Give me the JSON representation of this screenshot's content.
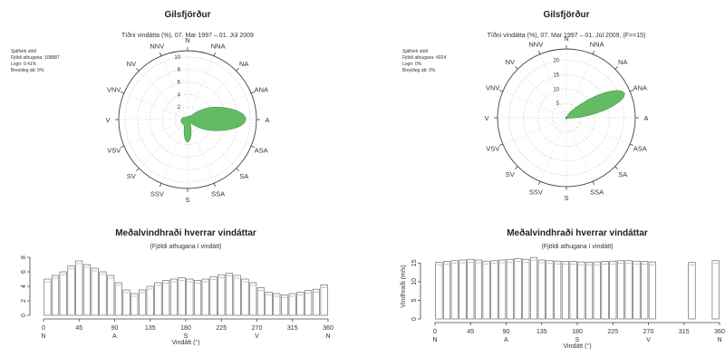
{
  "directions": [
    "N",
    "NNA",
    "NA",
    "ANA",
    "A",
    "ASA",
    "SA",
    "SSA",
    "S",
    "SSV",
    "SV",
    "VSV",
    "V",
    "VNV",
    "NV",
    "NNV"
  ],
  "chart_data": [
    {
      "type": "polar-area",
      "title": "Gilsfjörður",
      "subtitle": "Tíðni vindátta (%), 07. Mar 1997 – 01. Júl 2009",
      "info": [
        "Sjálfvirk stöð",
        "Fjöldi athugana: 108887",
        "Logn: 0.41%",
        "Breytileg átt: 0%"
      ],
      "rings": [
        2,
        4,
        6,
        8,
        10
      ],
      "rmax": 11,
      "fill_color": "#5cb85c",
      "direction_deg": [
        0,
        22.5,
        45,
        67.5,
        90,
        112.5,
        135,
        157.5,
        180,
        202.5,
        225,
        247.5,
        270,
        292.5,
        315,
        337.5
      ],
      "values": [
        0.5,
        0.6,
        1.2,
        5.2,
        9.3,
        4.6,
        0.9,
        1.4,
        3.6,
        1.4,
        1.0,
        1.1,
        1.0,
        0.8,
        0.5,
        0.4
      ]
    },
    {
      "type": "polar-area",
      "title": "Gilsfjörður",
      "subtitle": "Tíðni vindátta (%), 07. Mar 1997 – 01. Júl 2009, (F>=15)",
      "info": [
        "Sjálfvirk stöð",
        "Fjöldi athugana: 4024",
        "Logn: 0%",
        "Breytileg átt: 0%"
      ],
      "rings": [
        5,
        10,
        15,
        20
      ],
      "rmax": 24,
      "fill_color": "#5cb85c",
      "direction_deg": [
        0,
        22.5,
        45,
        67.5,
        90,
        112.5,
        135,
        157.5,
        180,
        202.5,
        225,
        247.5,
        270,
        292.5,
        315,
        337.5
      ],
      "values": [
        0.3,
        0.5,
        6,
        22,
        3,
        0.6,
        0.4,
        0.4,
        0.4,
        0.4,
        0.4,
        0.3,
        0.3,
        0.3,
        0.3,
        0.3
      ]
    },
    {
      "type": "bar",
      "title": "Meðalvindhraði hverrar vindáttar",
      "subtitle": "(Fjöldi athugana í vindátt)",
      "xlabel": "Vindátt (°)",
      "ylabel": "",
      "xlim": [
        0,
        360
      ],
      "ylim": [
        0,
        8.5
      ],
      "x_ticks": [
        0,
        45,
        90,
        135,
        180,
        225,
        270,
        315,
        360
      ],
      "x_tick_dirs": [
        "N",
        "",
        "A",
        "",
        "S",
        "",
        "V",
        "",
        "N"
      ],
      "y_ticks": [
        0,
        2,
        4,
        6,
        8
      ],
      "x": [
        5,
        15,
        25,
        35,
        45,
        55,
        65,
        75,
        85,
        95,
        105,
        115,
        125,
        135,
        145,
        155,
        165,
        175,
        185,
        195,
        205,
        215,
        225,
        235,
        245,
        255,
        265,
        275,
        285,
        295,
        305,
        315,
        325,
        335,
        345,
        355
      ],
      "values": [
        5.0,
        5.5,
        6.0,
        6.8,
        7.5,
        7.0,
        6.5,
        6.0,
        5.5,
        4.5,
        3.5,
        3.0,
        3.5,
        4.0,
        4.5,
        4.8,
        5.0,
        5.2,
        5.0,
        4.8,
        5.0,
        5.3,
        5.6,
        5.8,
        5.5,
        5.0,
        4.5,
        3.8,
        3.2,
        3.0,
        2.8,
        3.0,
        3.2,
        3.4,
        3.6,
        4.2
      ]
    },
    {
      "type": "bar",
      "title": "Meðalvindhraði hverrar vindáttar",
      "subtitle": "(Fjöldi athugana í vindátt)",
      "xlabel": "Vindátt (°)",
      "ylabel": "Vindhraði (m/s)",
      "xlim": [
        0,
        360
      ],
      "ylim": [
        0,
        17.5
      ],
      "x_ticks": [
        0,
        45,
        90,
        135,
        180,
        225,
        270,
        315,
        360
      ],
      "x_tick_dirs": [
        "N",
        "",
        "A",
        "",
        "S",
        "",
        "V",
        "",
        "N"
      ],
      "y_ticks": [
        0,
        5,
        10,
        15
      ],
      "x": [
        5,
        15,
        25,
        35,
        45,
        55,
        65,
        75,
        85,
        95,
        105,
        115,
        125,
        135,
        145,
        155,
        165,
        175,
        185,
        195,
        205,
        215,
        225,
        235,
        245,
        255,
        265,
        275,
        325,
        355
      ],
      "values": [
        15.2,
        15.4,
        15.6,
        15.8,
        16.0,
        15.8,
        15.5,
        15.6,
        15.8,
        16.0,
        16.2,
        16.0,
        16.5,
        15.8,
        15.6,
        15.5,
        15.4,
        15.4,
        15.3,
        15.2,
        15.3,
        15.4,
        15.5,
        15.6,
        15.6,
        15.5,
        15.4,
        15.3,
        15.2,
        15.6
      ]
    }
  ]
}
